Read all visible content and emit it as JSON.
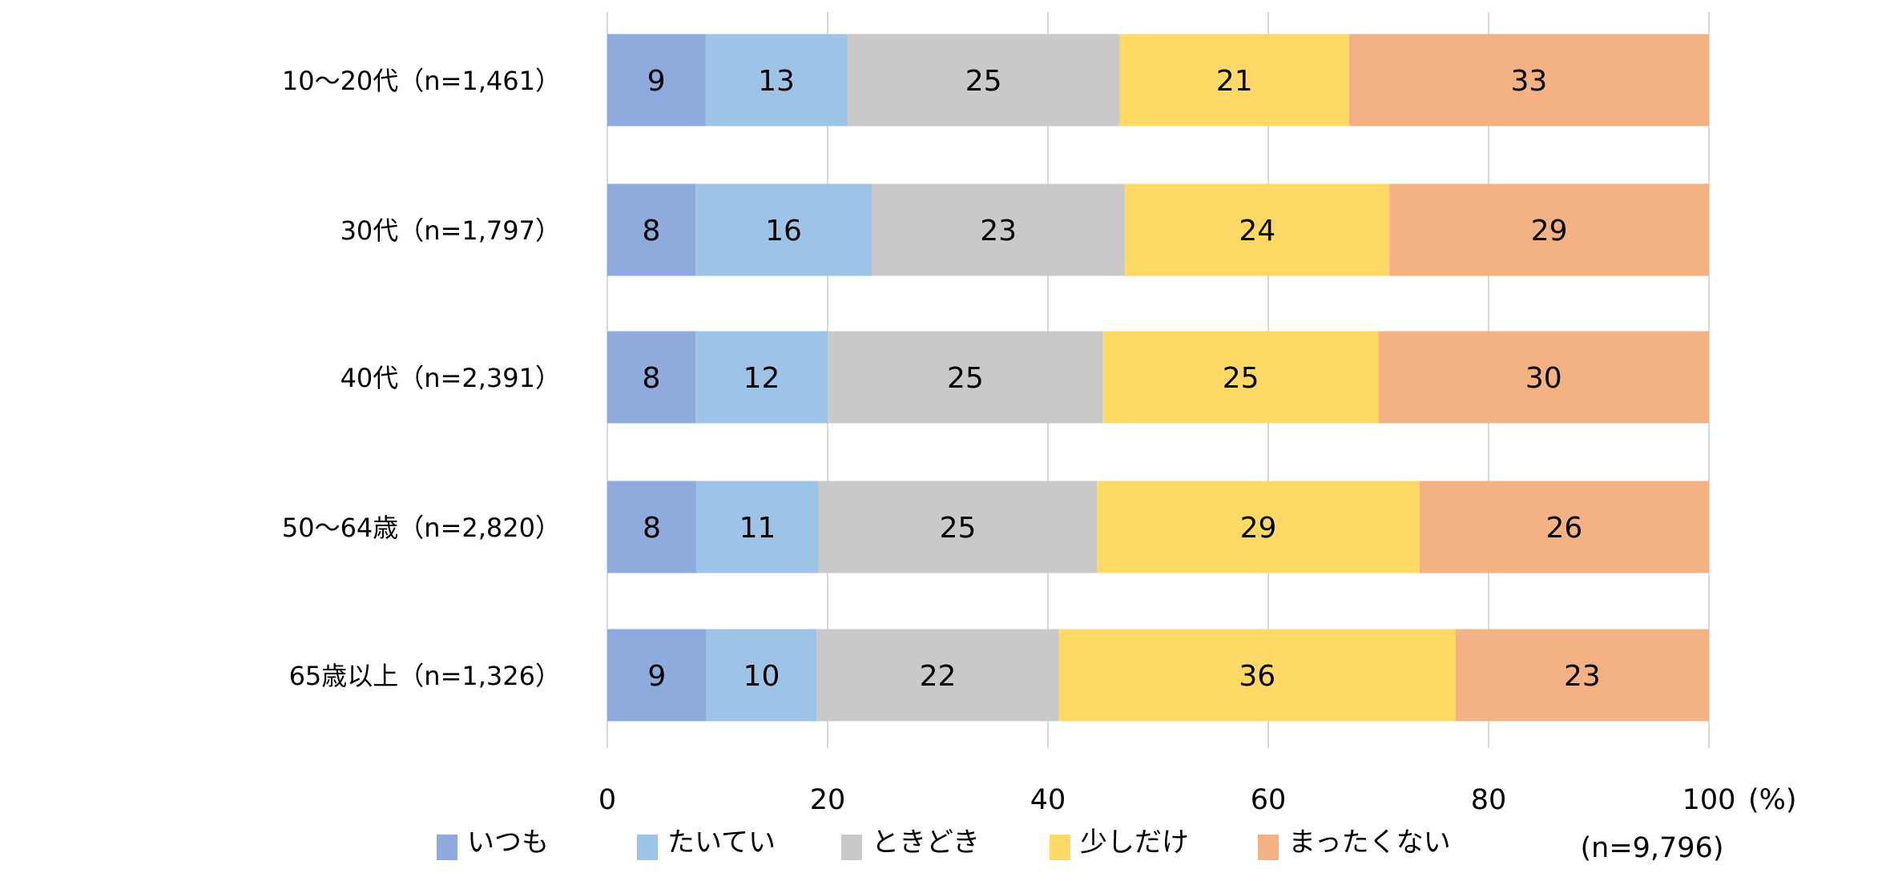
{
  "chart_data": {
    "type": "bar",
    "orientation": "horizontal",
    "stacked": true,
    "categories": [
      "10〜20代（n=1,461）",
      "30代（n=1,797）",
      "40代（n=2,391）",
      "50〜64歳（n=2,820）",
      "65歳以上（n=1,326）"
    ],
    "series": [
      {
        "name": "いつも",
        "color": "#8faadc",
        "values": [
          9,
          8,
          8,
          8,
          9
        ]
      },
      {
        "name": "たいてい",
        "color": "#9dc3e6",
        "values": [
          13,
          16,
          12,
          11,
          10
        ]
      },
      {
        "name": "ときどき",
        "color": "#c9c9c9",
        "values": [
          25,
          23,
          25,
          25,
          22
        ]
      },
      {
        "name": "少しだけ",
        "color": "#ffd966",
        "values": [
          21,
          24,
          25,
          29,
          36
        ]
      },
      {
        "name": "まったくない",
        "color": "#f4b183",
        "values": [
          33,
          29,
          30,
          26,
          23
        ]
      }
    ],
    "xlim": [
      0,
      100
    ],
    "xticks": [
      "0",
      "20",
      "40",
      "60",
      "80",
      "100"
    ],
    "xunit": "(%)",
    "note": "(n=9,796)",
    "grid": true,
    "legend": "bottom"
  }
}
